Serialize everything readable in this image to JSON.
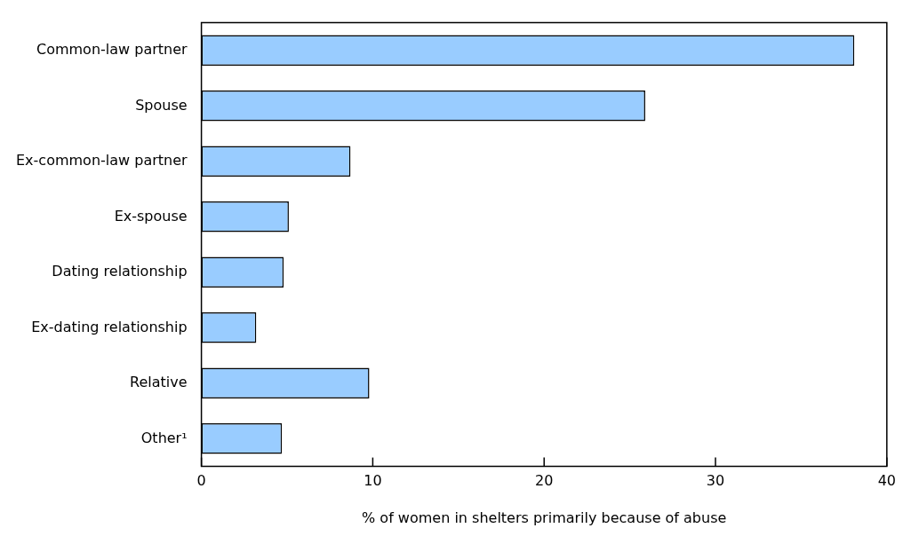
{
  "chart_data": {
    "type": "bar",
    "orientation": "horizontal",
    "categories": [
      "Common-law partner",
      "Spouse",
      "Ex-common-law partner",
      "Ex-spouse",
      "Dating relationship",
      "Ex-dating relationship",
      "Relative",
      "Other¹"
    ],
    "values": [
      38.1,
      25.9,
      8.7,
      5.1,
      4.8,
      3.2,
      9.8,
      4.7
    ],
    "color": "#99ccff",
    "xlabel": "% of women in shelters primarily because of abuse",
    "xlim": [
      0,
      40
    ],
    "xticks": [
      0,
      10,
      20,
      30,
      40
    ],
    "grid": false,
    "legend": false
  }
}
